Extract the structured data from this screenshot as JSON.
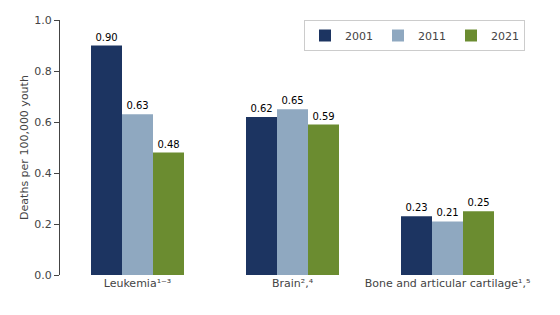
{
  "chart_data": {
    "type": "bar",
    "categories": [
      "Leukemia¹⁻³",
      "Brain²,⁴",
      "Bone and articular cartilage¹,⁵"
    ],
    "series": [
      {
        "name": "2001",
        "color": "#1c3461",
        "values": [
          0.9,
          0.62,
          0.23
        ],
        "value_labels": [
          "0.90",
          "0.62",
          "0.23"
        ]
      },
      {
        "name": "2011",
        "color": "#8fa8c0",
        "values": [
          0.63,
          0.65,
          0.21
        ],
        "value_labels": [
          "0.63",
          "0.65",
          "0.21"
        ]
      },
      {
        "name": "2021",
        "color": "#6b8c30",
        "values": [
          0.48,
          0.59,
          0.25
        ],
        "value_labels": [
          "0.48",
          "0.59",
          "0.25"
        ]
      }
    ],
    "ylabel": "Deaths per 100,000 youth",
    "ylim": [
      0,
      1.0
    ],
    "yticks": [
      {
        "value": 0,
        "label": "0.0"
      },
      0.2,
      0.4,
      0.6,
      0.8,
      {
        "value": 1.0,
        "label": "1.0"
      }
    ],
    "grid": false,
    "legend": "upper right",
    "data_labels": true
  }
}
